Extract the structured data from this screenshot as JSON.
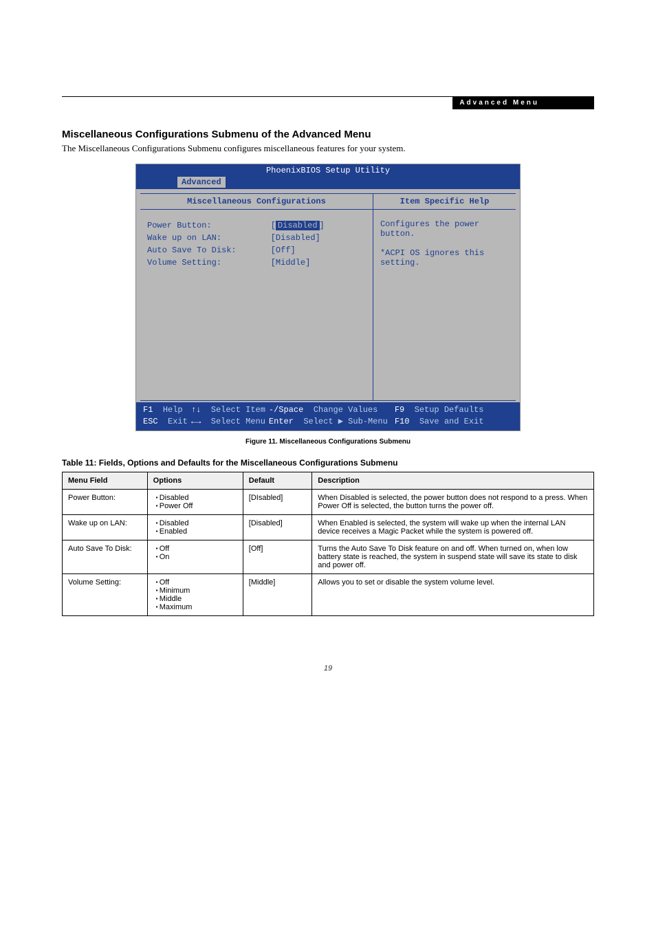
{
  "header_strip": "Advanced Menu",
  "section_title": "Miscellaneous Configurations Submenu of the Advanced Menu",
  "intro": "The Miscellaneous Configurations Submenu configures miscellaneous features for your system.",
  "bios": {
    "title": "PhoenixBIOS Setup Utility",
    "tab": "Advanced",
    "left_panel_title": "Miscellaneous Configurations",
    "right_panel_title": "Item Specific Help",
    "settings": [
      {
        "label": "Power Button:",
        "value": "Disabled",
        "highlighted": true,
        "braces": false
      },
      {
        "label": "Wake up on LAN:",
        "value": "[Disabled]",
        "highlighted": false
      },
      {
        "label": "Auto Save To Disk:",
        "value": "[Off]",
        "highlighted": false
      },
      {
        "label": "Volume Setting:",
        "value": "[Middle]",
        "highlighted": false
      }
    ],
    "help_lines": [
      "Configures the power",
      "button.",
      "",
      "*ACPI OS ignores this",
      "setting."
    ],
    "footer": {
      "cells": [
        {
          "k": "F1",
          "t": "Help",
          "w": "13%"
        },
        {
          "k": "↑↓",
          "t": "Select Item",
          "w": "21%"
        },
        {
          "k": "-/Space",
          "t": "Change Values",
          "w": "34%"
        },
        {
          "k": "F9",
          "t": "Setup Defaults",
          "w": "32%"
        },
        {
          "k": "ESC",
          "t": "Exit",
          "w": "13%"
        },
        {
          "k": "←→",
          "t": "Select Menu",
          "w": "21%"
        },
        {
          "k": "Enter",
          "t": "Select ▶ Sub-Menu",
          "w": "34%"
        },
        {
          "k": "F10",
          "t": "Save and Exit",
          "w": "32%"
        }
      ]
    }
  },
  "fig_caption": "Figure 11.   Miscellaneous Configurations Submenu",
  "table_title": "Table 11: Fields, Options and Defaults for the Miscellaneous Configurations Submenu",
  "table": {
    "headers": [
      "Menu Field",
      "Options",
      "Default",
      "Description"
    ],
    "col_widths": [
      "16%",
      "18%",
      "13%",
      "53%"
    ],
    "rows": [
      {
        "field": "Power Button:",
        "options": [
          "Disabled",
          "Power Off"
        ],
        "default": "[DIsabled]",
        "desc": "When Disabled is selected, the power button does not respond to a press. When Power Off is selected, the button turns the power off."
      },
      {
        "field": "Wake up on LAN:",
        "options": [
          "Disabled",
          "Enabled"
        ],
        "default": "[Disabled]",
        "desc": "When Enabled is selected, the system will wake up when the internal LAN device receives a Magic Packet while the system is powered off."
      },
      {
        "field": "Auto Save To Disk:",
        "options": [
          "Off",
          "On"
        ],
        "default": "[Off]",
        "desc": "Turns the Auto Save To Disk feature on and off. When turned on, when low battery state is reached, the system in suspend state will save its state to disk and power off."
      },
      {
        "field": "Volume Setting:",
        "options": [
          "Off",
          "Minimum",
          "Middle",
          "Maximum"
        ],
        "default": "[Middle]",
        "desc": "Allows you to set or disable the system volume level."
      }
    ]
  },
  "page_number": "19"
}
